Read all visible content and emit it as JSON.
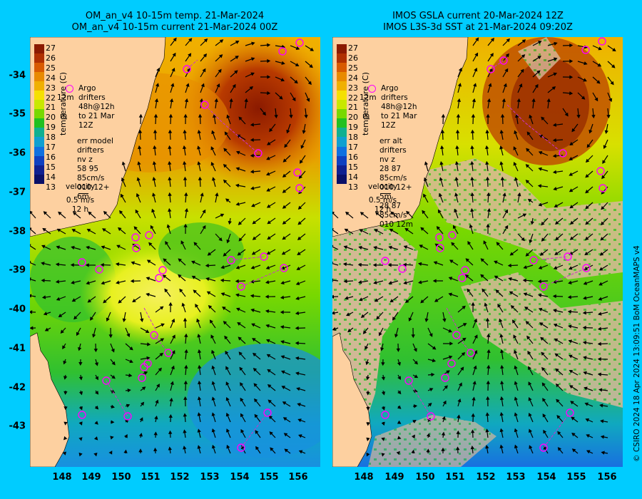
{
  "panels": [
    {
      "title_line1": "OM_an_v4  10-15m temp. 21-Mar-2024",
      "title_line2": "OM_an_v4  10-15m current 21-Mar-2024 00Z",
      "legend": {
        "argo": "Argo",
        "drifters": "drifters 48h@12h",
        "to": "to 21 Mar 12Z",
        "side_12m": "12m",
        "side_m": "m",
        "err_line1": "err model drifters nv z",
        "err_line2": "58 95 85cm/s 010 12+ 6m",
        "velocity": "velocity",
        "velocity_scale": "0.5 m/s",
        "velocity_time": "12 h"
      }
    },
    {
      "title_line1": "IMOS GSLA current 20-Mar-2024 12Z",
      "title_line2": "IMOS L3S-3d SST at 21-Mar-2024 09:20Z",
      "legend": {
        "argo": "Argo",
        "drifters": "drifters 48h@12h",
        "to": "to 21 Mar 12Z",
        "side_12m": "12m",
        "side_m": "m",
        "err_line1": "err alt drifters nv z",
        "err_line2": "28 87 85cm/s 010 12+ 5m",
        "err_line3": "28 87 85cm/s 010 12m",
        "velocity": "velocity",
        "velocity_scale": "0.5 m/s",
        "velocity_time": "12 h"
      }
    }
  ],
  "colorbar": {
    "label": "temperature (C)",
    "ticks": [
      "27",
      "26",
      "25",
      "24",
      "23",
      "22",
      "21",
      "20",
      "19",
      "18",
      "17",
      "16",
      "15",
      "14",
      "13"
    ],
    "colors": [
      "#8b1a00",
      "#b03000",
      "#d85a00",
      "#e88a00",
      "#f0b000",
      "#f5e000",
      "#c8e800",
      "#78d800",
      "#22c020",
      "#10b090",
      "#10a0d0",
      "#1070e0",
      "#1040c0",
      "#102090",
      "#0a1068"
    ]
  },
  "axes": {
    "lat_ticks": [
      "-34",
      "-35",
      "-36",
      "-37",
      "-38",
      "-39",
      "-40",
      "-41",
      "-42",
      "-43"
    ],
    "lon_ticks": [
      "148",
      "149",
      "150",
      "151",
      "152",
      "153",
      "154",
      "155",
      "156"
    ]
  },
  "credit": "© CSIRO 2024   18 Apr 2024 13:09:51 BoM OceanMAPS v4",
  "map_colors": {
    "land": "#fdd0a0",
    "cloud": "#d8b89a",
    "argo": "#ff00ff",
    "drifter": "#cc33cc"
  }
}
